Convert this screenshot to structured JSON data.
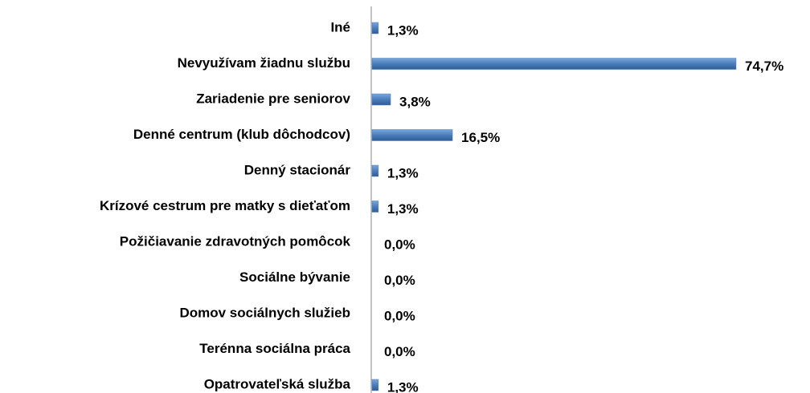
{
  "chart_data": {
    "type": "bar",
    "orientation": "horizontal",
    "categories": [
      "Iné",
      "Nevyužívam žiadnu službu",
      "Zariadenie pre seniorov",
      "Denné centrum (klub dôchodcov)",
      "Denný stacionár",
      "Krízové cestrum pre matky s dieťaťom",
      "Požičiavanie zdravotných pomôcok",
      "Sociálne bývanie",
      "Domov sociálnych služieb",
      "Terénna sociálna práca",
      "Opatrovateľská služba"
    ],
    "values": [
      1.3,
      74.7,
      3.8,
      16.5,
      1.3,
      1.3,
      0,
      0,
      0,
      0,
      1.3
    ],
    "value_labels": [
      "1,3%",
      "74,7%",
      "3,8%",
      "16,5%",
      "1,3%",
      "1,3%",
      "0,0%",
      "0,0%",
      "0,0%",
      "0,0%",
      "1,3%"
    ],
    "color": "#4a7ebb"
  }
}
